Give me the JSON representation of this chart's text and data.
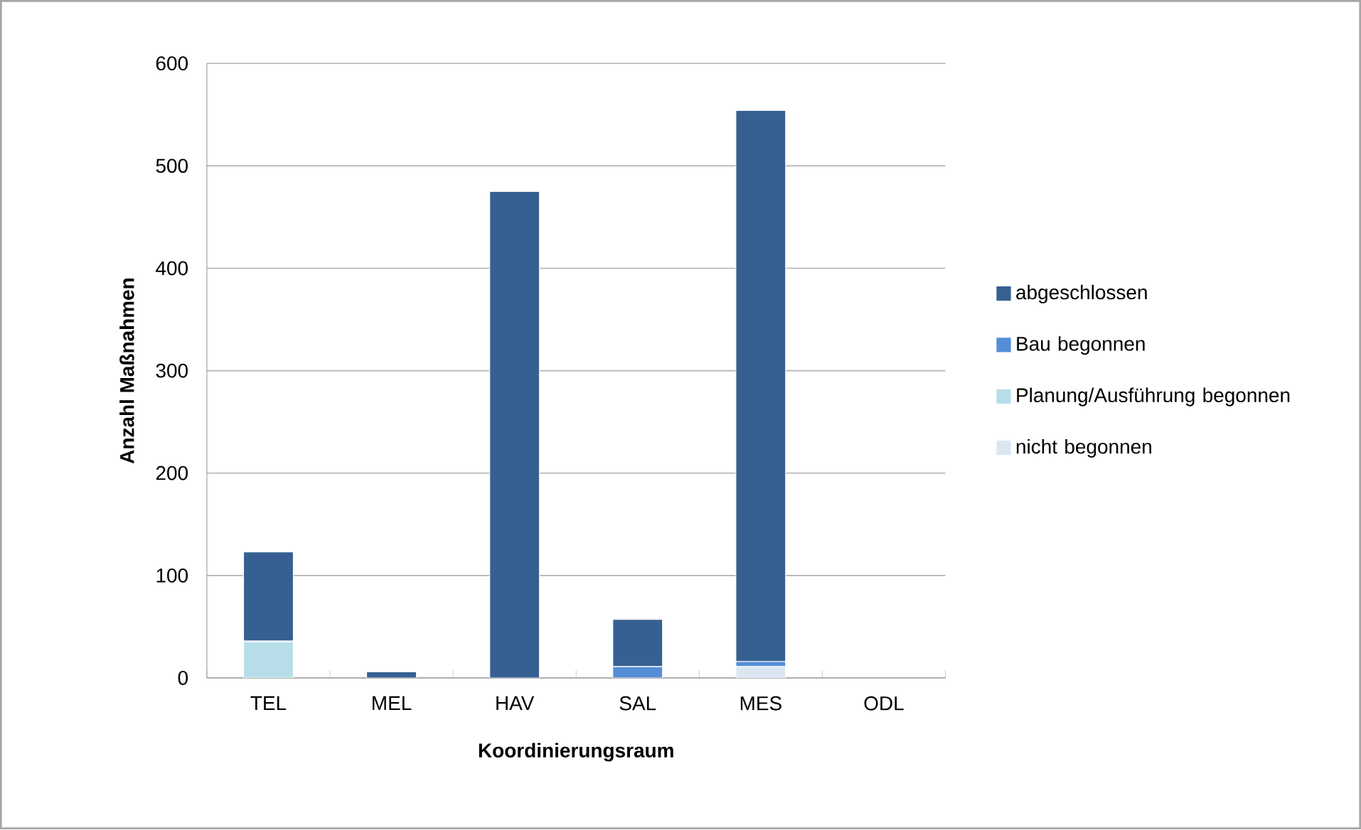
{
  "chart_data": {
    "type": "bar",
    "stacked": true,
    "xlabel": "Koordinierungsraum",
    "ylabel": "Anzahl Maßnahmen",
    "categories": [
      "TEL",
      "MEL",
      "HAV",
      "SAL",
      "MES",
      "ODL"
    ],
    "series": [
      {
        "name": "nicht begonnen",
        "color": "#dce6f2",
        "values": [
          0,
          0,
          0,
          0,
          11,
          0
        ]
      },
      {
        "name": "Planung/Ausführung begonnen",
        "color": "#b7dee8",
        "values": [
          35,
          null,
          0,
          0,
          0,
          0
        ]
      },
      {
        "name": "Bau begonnen",
        "color": "#558ed5",
        "values": [
          1,
          0,
          0,
          11,
          5,
          0
        ]
      },
      {
        "name": "abgeschlossen",
        "color": "#366092",
        "values": [
          87,
          6,
          475,
          46,
          538,
          0
        ]
      }
    ],
    "ylim": [
      0,
      600
    ],
    "yticks": [
      0,
      100,
      200,
      300,
      400,
      500,
      600
    ],
    "grid": "y",
    "legend": "right"
  }
}
